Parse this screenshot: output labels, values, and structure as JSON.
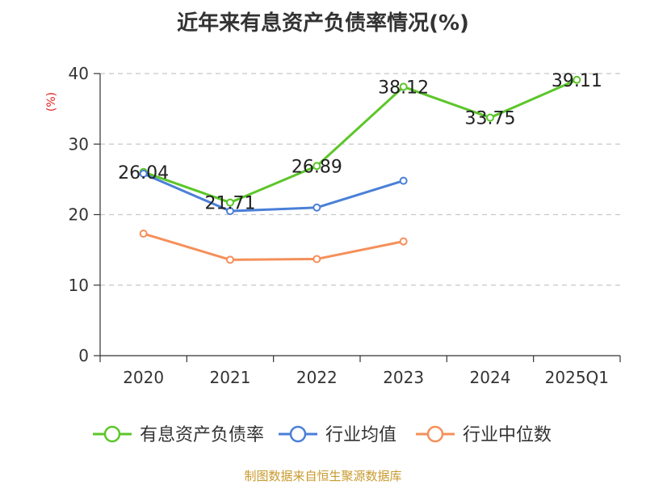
{
  "title": "近年来有息资产负债率情况(%)",
  "source": "制图数据来自恒生聚源数据库",
  "chart_data": {
    "type": "line",
    "title": "近年来有息资产负债率情况(%)",
    "ylabel": "(%)",
    "xlabel": "",
    "ylim": [
      0,
      40
    ],
    "yticks": [
      0,
      10,
      20,
      30,
      40
    ],
    "categories": [
      "2020",
      "2021",
      "2022",
      "2023",
      "2024",
      "2025Q1"
    ],
    "grid": true,
    "legend_position": "bottom",
    "series": [
      {
        "name": "有息资产负债率",
        "color": "#5cc62a",
        "values": [
          26.04,
          21.71,
          26.89,
          38.12,
          33.75,
          39.11
        ],
        "show_labels": true
      },
      {
        "name": "行业均值",
        "color": "#4a7fd8",
        "values": [
          25.8,
          20.5,
          21.0,
          24.8,
          null,
          null
        ],
        "show_labels": false
      },
      {
        "name": "行业中位数",
        "color": "#f5905a",
        "values": [
          17.3,
          13.6,
          13.7,
          16.2,
          null,
          null
        ],
        "show_labels": false
      }
    ]
  }
}
